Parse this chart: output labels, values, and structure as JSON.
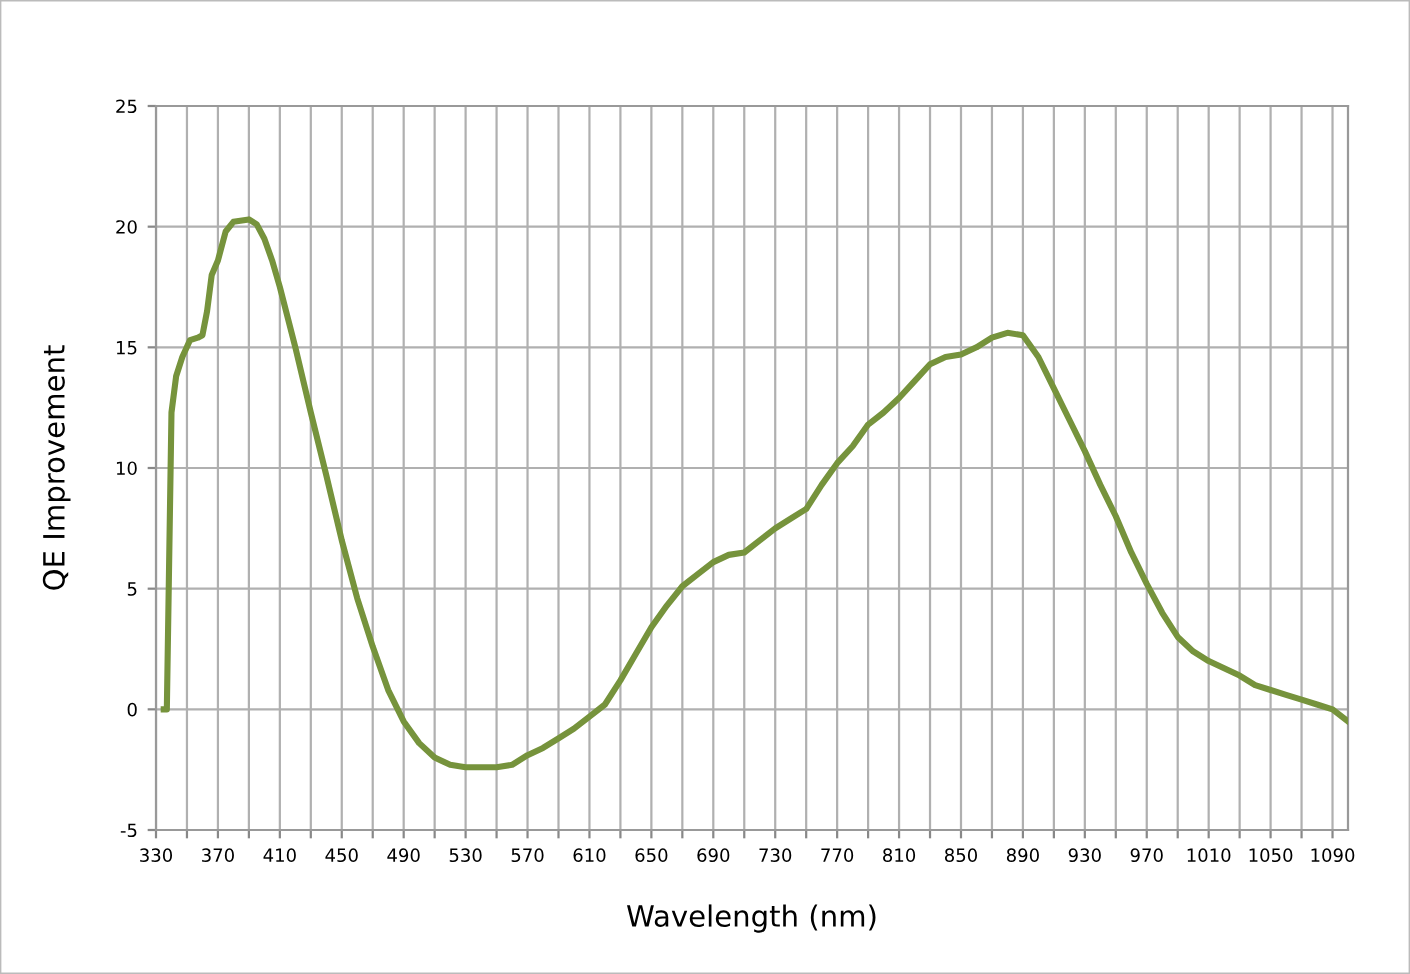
{
  "chart_data": {
    "type": "line",
    "xlabel": "Wavelength (nm)",
    "ylabel": "QE Improvement",
    "x": [
      335,
      337,
      340,
      343,
      347,
      352,
      357,
      360,
      363,
      366,
      370,
      375,
      380,
      390,
      395,
      400,
      405,
      410,
      420,
      430,
      440,
      450,
      460,
      470,
      480,
      490,
      500,
      510,
      520,
      530,
      550,
      560,
      570,
      580,
      590,
      600,
      610,
      620,
      630,
      640,
      650,
      660,
      670,
      680,
      690,
      700,
      710,
      720,
      730,
      740,
      750,
      760,
      770,
      780,
      790,
      800,
      810,
      820,
      830,
      840,
      850,
      860,
      870,
      880,
      890,
      900,
      910,
      920,
      930,
      940,
      950,
      960,
      970,
      980,
      990,
      1000,
      1010,
      1020,
      1030,
      1040,
      1050,
      1060,
      1070,
      1080,
      1090,
      1100
    ],
    "series": [
      {
        "color": "#76933c",
        "values": [
          0,
          0,
          12.3,
          13.8,
          14.6,
          15.3,
          15.4,
          15.5,
          16.5,
          18,
          18.6,
          19.8,
          20.2,
          20.3,
          20.1,
          19.5,
          18.6,
          17.5,
          15,
          12.3,
          9.7,
          7,
          4.6,
          2.6,
          0.8,
          -0.5,
          -1.4,
          -2,
          -2.3,
          -2.4,
          -2.4,
          -2.3,
          -1.9,
          -1.6,
          -1.2,
          -0.8,
          -0.3,
          0.2,
          1.2,
          2.3,
          3.4,
          4.3,
          5.1,
          5.6,
          6.1,
          6.4,
          6.5,
          7,
          7.5,
          7.9,
          8.3,
          9.3,
          10.2,
          10.9,
          11.8,
          12.3,
          12.9,
          13.6,
          14.3,
          14.6,
          14.7,
          15,
          15.4,
          15.6,
          15.5,
          14.6,
          13.3,
          12,
          10.7,
          9.3,
          8,
          6.5,
          5.2,
          4,
          3,
          2.4,
          2,
          1.7,
          1.4,
          1,
          0.8,
          0.6,
          0.4,
          0.2,
          0,
          -0.5
        ]
      }
    ],
    "xlim": [
      330,
      1100
    ],
    "ylim": [
      -5,
      25
    ],
    "xticks": [
      330,
      {
        "value": 350,
        "label": null
      },
      370,
      {
        "value": 390,
        "label": null
      },
      410,
      {
        "value": 430,
        "label": null
      },
      450,
      {
        "value": 470,
        "label": null
      },
      490,
      {
        "value": 510,
        "label": null
      },
      530,
      {
        "value": 550,
        "label": null
      },
      570,
      {
        "value": 590,
        "label": null
      },
      610,
      {
        "value": 630,
        "label": null
      },
      650,
      {
        "value": 670,
        "label": null
      },
      690,
      {
        "value": 710,
        "label": null
      },
      730,
      {
        "value": 750,
        "label": null
      },
      770,
      {
        "value": 790,
        "label": null
      },
      810,
      {
        "value": 830,
        "label": null
      },
      850,
      {
        "value": 870,
        "label": null
      },
      890,
      {
        "value": 910,
        "label": null
      },
      930,
      {
        "value": 950,
        "label": null
      },
      970,
      {
        "value": 990,
        "label": null
      },
      1010,
      {
        "value": 1030,
        "label": null
      },
      1050,
      {
        "value": 1070,
        "label": null
      },
      1090
    ],
    "yticks": [
      -5,
      0,
      5,
      10,
      15,
      20,
      25
    ],
    "grid": true,
    "marker": "none",
    "line_style": "solid"
  }
}
